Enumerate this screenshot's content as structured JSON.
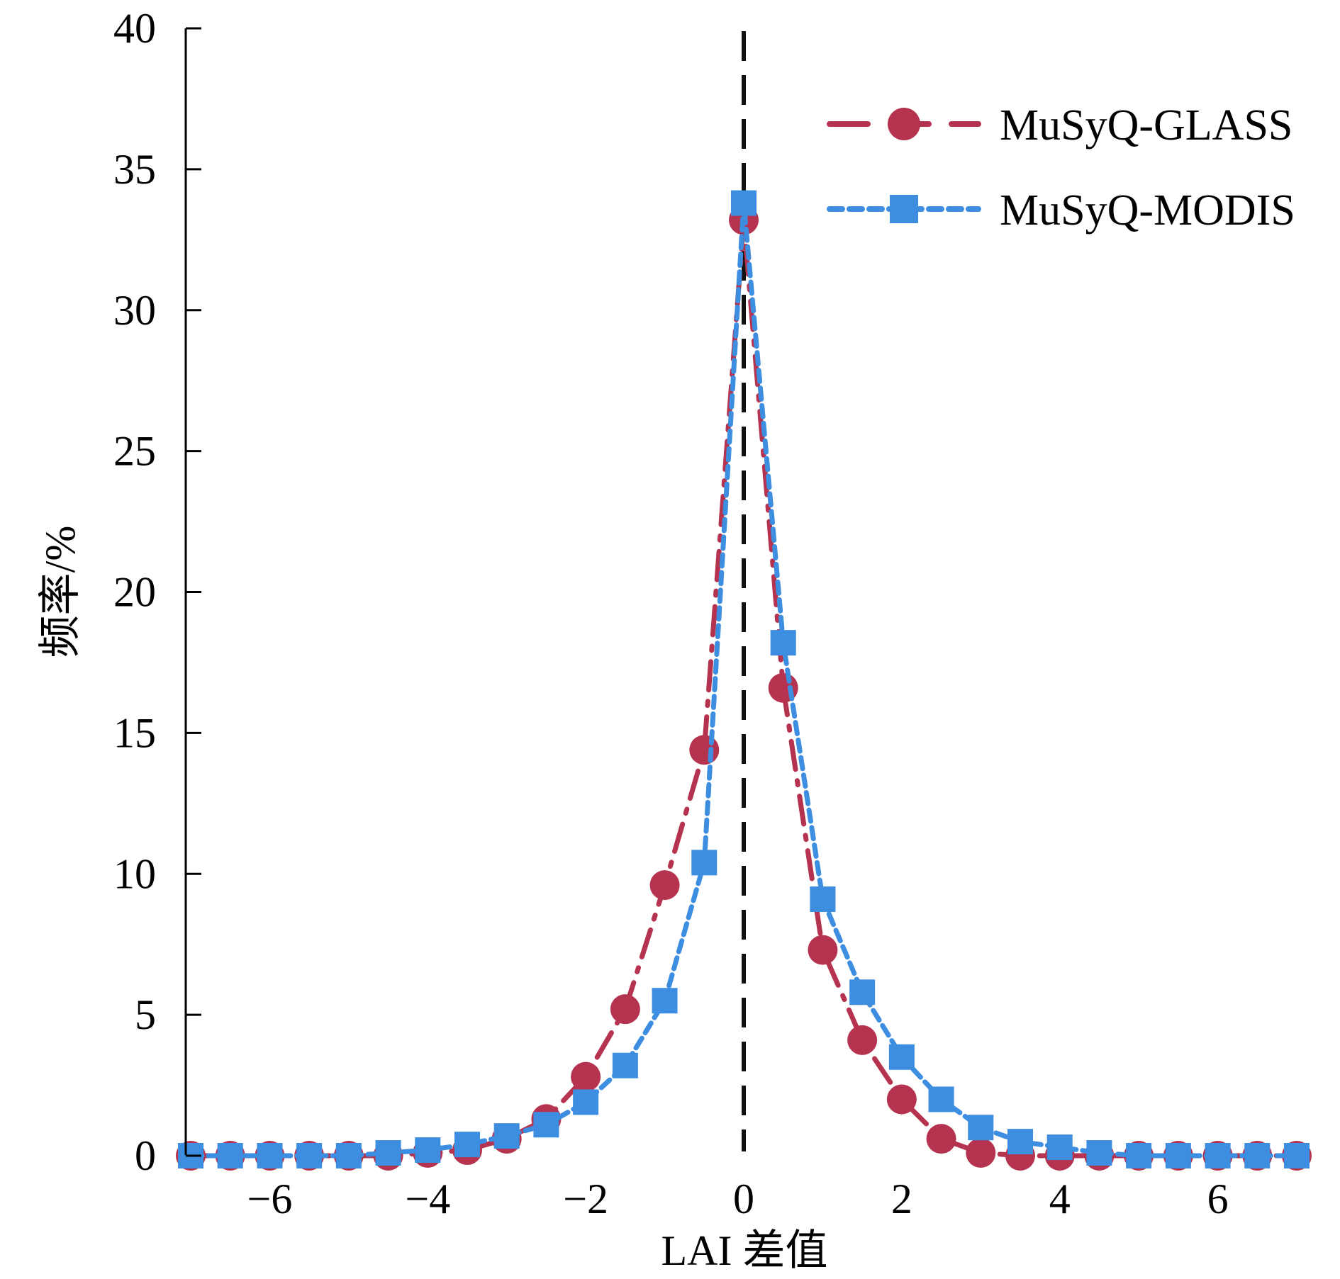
{
  "chart_data": {
    "type": "line",
    "title": "",
    "xlabel": "LAI 差值",
    "ylabel": "频率/%",
    "xlim": [
      -7,
      7
    ],
    "ylim": [
      0,
      40
    ],
    "x_ticks": [
      -6,
      -4,
      -2,
      0,
      2,
      4,
      6
    ],
    "x_tick_labels": [
      "−6",
      "−4",
      "−2",
      "0",
      "2",
      "4",
      "6"
    ],
    "y_ticks": [
      0,
      5,
      10,
      15,
      20,
      25,
      30,
      35,
      40
    ],
    "y_tick_labels": [
      "0",
      "5",
      "10",
      "15",
      "20",
      "25",
      "30",
      "35",
      "40"
    ],
    "reference_line_x": 0,
    "legend_position": "top-right",
    "x": [
      -7,
      -6.5,
      -6,
      -5.5,
      -5,
      -4.5,
      -4,
      -3.5,
      -3,
      -2.5,
      -2,
      -1.5,
      -1,
      -0.5,
      0,
      0.5,
      1,
      1.5,
      2,
      2.5,
      3,
      3.5,
      4,
      4.5,
      5,
      5.5,
      6,
      6.5,
      7
    ],
    "series": [
      {
        "name": "MuSyQ-GLASS",
        "color": "#b5334e",
        "marker": "circle",
        "line_style": "dash-dot",
        "values": [
          0,
          0,
          0,
          0,
          0,
          0,
          0.1,
          0.2,
          0.6,
          1.3,
          2.8,
          5.2,
          9.6,
          14.4,
          33.2,
          16.6,
          7.3,
          4.1,
          2.0,
          0.6,
          0.1,
          0,
          0,
          0,
          0,
          0,
          0,
          0,
          0
        ]
      },
      {
        "name": "MuSyQ-MODIS",
        "color": "#3d8ee0",
        "marker": "square",
        "line_style": "dotted",
        "values": [
          0,
          0,
          0,
          0,
          0,
          0.1,
          0.2,
          0.4,
          0.7,
          1.1,
          1.9,
          3.2,
          5.5,
          10.4,
          33.8,
          18.2,
          9.1,
          5.8,
          3.5,
          2.0,
          1.0,
          0.5,
          0.3,
          0.1,
          0,
          0,
          0,
          0,
          0
        ]
      }
    ]
  }
}
